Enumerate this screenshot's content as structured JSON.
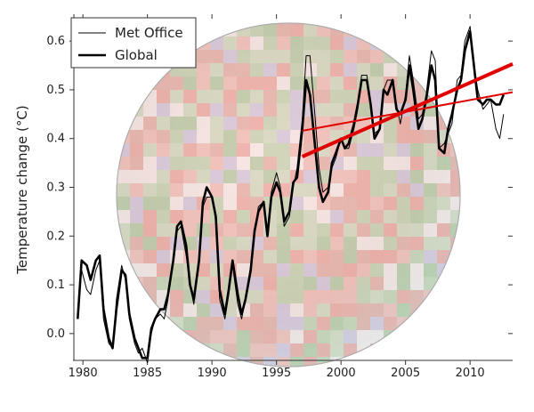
{
  "chart_data": {
    "type": "line",
    "title": "",
    "xlabel": "",
    "ylabel": "Temperature change (°C)",
    "xlim": [
      1979.3,
      2013.3
    ],
    "ylim": [
      -0.055,
      0.655
    ],
    "xticks": [
      1980,
      1985,
      1990,
      1995,
      2000,
      2005,
      2010
    ],
    "xtick_labels": [
      "1980",
      "1985",
      "1990",
      "1995",
      "2000",
      "2005",
      "2010"
    ],
    "yticks": [
      0.0,
      0.1,
      0.2,
      0.3,
      0.4,
      0.5,
      0.6
    ],
    "ytick_labels": [
      "0.0",
      "0.1",
      "0.2",
      "0.3",
      "0.4",
      "0.5",
      "0.6"
    ],
    "grid": false,
    "legend_position": "top-left",
    "background": "globe map of temperature anomalies (red warm, green cool, white missing)",
    "colors": {
      "met_office": "#000000",
      "global": "#000000",
      "trend": "#e00000"
    },
    "series": [
      {
        "name": "Met Office",
        "style": "thin",
        "x": [
          1979.6,
          1979.9,
          1980.3,
          1980.6,
          1981.0,
          1981.3,
          1981.6,
          1982.0,
          1982.3,
          1982.6,
          1983.0,
          1983.3,
          1983.6,
          1984.0,
          1984.3,
          1984.6,
          1985.0,
          1985.3,
          1985.6,
          1986.0,
          1986.3,
          1986.6,
          1987.0,
          1987.3,
          1987.6,
          1988.0,
          1988.3,
          1988.6,
          1989.0,
          1989.3,
          1989.6,
          1990.0,
          1990.3,
          1990.6,
          1991.0,
          1991.3,
          1991.6,
          1992.0,
          1992.3,
          1992.6,
          1993.0,
          1993.3,
          1993.6,
          1994.0,
          1994.3,
          1994.6,
          1995.0,
          1995.3,
          1995.6,
          1996.0,
          1996.3,
          1996.6,
          1997.0,
          1997.3,
          1997.6,
          1998.0,
          1998.3,
          1998.6,
          1999.0,
          1999.3,
          1999.6,
          2000.0,
          2000.3,
          2000.6,
          2001.0,
          2001.3,
          2001.6,
          2002.0,
          2002.3,
          2002.6,
          2003.0,
          2003.3,
          2003.6,
          2004.0,
          2004.3,
          2004.6,
          2005.0,
          2005.3,
          2005.6,
          2006.0,
          2006.3,
          2006.6,
          2007.0,
          2007.3,
          2007.6,
          2008.0,
          2008.3,
          2008.6,
          2009.0,
          2009.3,
          2009.6,
          2010.0,
          2010.3,
          2010.6,
          2011.0,
          2011.3,
          2011.6,
          2012.0,
          2012.3,
          2012.6
        ],
        "values": [
          0.05,
          0.13,
          0.09,
          0.08,
          0.13,
          0.15,
          0.03,
          -0.02,
          -0.03,
          0.07,
          0.14,
          0.11,
          0.03,
          -0.02,
          -0.04,
          -0.03,
          -0.06,
          0.0,
          0.03,
          0.04,
          0.03,
          0.07,
          0.16,
          0.21,
          0.22,
          0.16,
          0.1,
          0.06,
          0.16,
          0.26,
          0.28,
          0.28,
          0.23,
          0.07,
          0.03,
          0.08,
          0.14,
          0.06,
          0.03,
          0.07,
          0.14,
          0.2,
          0.26,
          0.27,
          0.21,
          0.29,
          0.33,
          0.3,
          0.22,
          0.24,
          0.3,
          0.34,
          0.44,
          0.57,
          0.57,
          0.44,
          0.34,
          0.29,
          0.3,
          0.34,
          0.36,
          0.4,
          0.38,
          0.38,
          0.42,
          0.46,
          0.53,
          0.53,
          0.46,
          0.41,
          0.42,
          0.5,
          0.52,
          0.52,
          0.47,
          0.43,
          0.49,
          0.57,
          0.52,
          0.44,
          0.45,
          0.49,
          0.58,
          0.56,
          0.38,
          0.39,
          0.41,
          0.43,
          0.52,
          0.53,
          0.6,
          0.63,
          0.55,
          0.5,
          0.46,
          0.47,
          0.48,
          0.42,
          0.4,
          0.45
        ]
      },
      {
        "name": "Global",
        "style": "thick",
        "x": [
          1979.6,
          1979.9,
          1980.3,
          1980.6,
          1981.0,
          1981.3,
          1981.6,
          1982.0,
          1982.3,
          1982.6,
          1983.0,
          1983.3,
          1983.6,
          1984.0,
          1984.3,
          1984.6,
          1985.0,
          1985.3,
          1985.6,
          1986.0,
          1986.3,
          1986.6,
          1987.0,
          1987.3,
          1987.6,
          1988.0,
          1988.3,
          1988.6,
          1989.0,
          1989.3,
          1989.6,
          1990.0,
          1990.3,
          1990.6,
          1991.0,
          1991.3,
          1991.6,
          1992.0,
          1992.3,
          1992.6,
          1993.0,
          1993.3,
          1993.6,
          1994.0,
          1994.3,
          1994.6,
          1995.0,
          1995.3,
          1995.6,
          1996.0,
          1996.3,
          1996.6,
          1997.0,
          1997.3,
          1997.6,
          1998.0,
          1998.3,
          1998.6,
          1999.0,
          1999.3,
          1999.6,
          2000.0,
          2000.3,
          2000.6,
          2001.0,
          2001.3,
          2001.6,
          2002.0,
          2002.3,
          2002.6,
          2003.0,
          2003.3,
          2003.6,
          2004.0,
          2004.3,
          2004.6,
          2005.0,
          2005.3,
          2005.6,
          2006.0,
          2006.3,
          2006.6,
          2007.0,
          2007.3,
          2007.6,
          2008.0,
          2008.3,
          2008.6,
          2009.0,
          2009.3,
          2009.6,
          2010.0,
          2010.3,
          2010.6,
          2011.0,
          2011.3,
          2011.6,
          2012.0,
          2012.3,
          2012.6
        ],
        "values": [
          0.03,
          0.15,
          0.14,
          0.11,
          0.15,
          0.16,
          0.05,
          -0.01,
          -0.03,
          0.05,
          0.13,
          0.12,
          0.04,
          -0.01,
          -0.03,
          -0.05,
          -0.05,
          0.01,
          0.03,
          0.05,
          0.05,
          0.08,
          0.15,
          0.22,
          0.23,
          0.18,
          0.1,
          0.07,
          0.15,
          0.27,
          0.3,
          0.28,
          0.24,
          0.09,
          0.04,
          0.09,
          0.15,
          0.08,
          0.04,
          0.07,
          0.13,
          0.21,
          0.25,
          0.27,
          0.2,
          0.28,
          0.31,
          0.29,
          0.23,
          0.25,
          0.31,
          0.32,
          0.42,
          0.52,
          0.49,
          0.38,
          0.3,
          0.27,
          0.29,
          0.35,
          0.37,
          0.4,
          0.38,
          0.39,
          0.43,
          0.47,
          0.52,
          0.52,
          0.47,
          0.4,
          0.42,
          0.5,
          0.49,
          0.52,
          0.46,
          0.45,
          0.48,
          0.55,
          0.5,
          0.42,
          0.44,
          0.48,
          0.55,
          0.52,
          0.38,
          0.37,
          0.42,
          0.45,
          0.5,
          0.52,
          0.58,
          0.62,
          0.55,
          0.48,
          0.47,
          0.48,
          0.48,
          0.47,
          0.47,
          0.49
        ]
      }
    ],
    "trend_lines": [
      {
        "style": "thick",
        "x": [
          1997.0,
          2013.3
        ],
        "values": [
          0.363,
          0.553
        ]
      },
      {
        "style": "thin",
        "x": [
          1997.0,
          2013.3
        ],
        "values": [
          0.416,
          0.495
        ]
      }
    ]
  }
}
